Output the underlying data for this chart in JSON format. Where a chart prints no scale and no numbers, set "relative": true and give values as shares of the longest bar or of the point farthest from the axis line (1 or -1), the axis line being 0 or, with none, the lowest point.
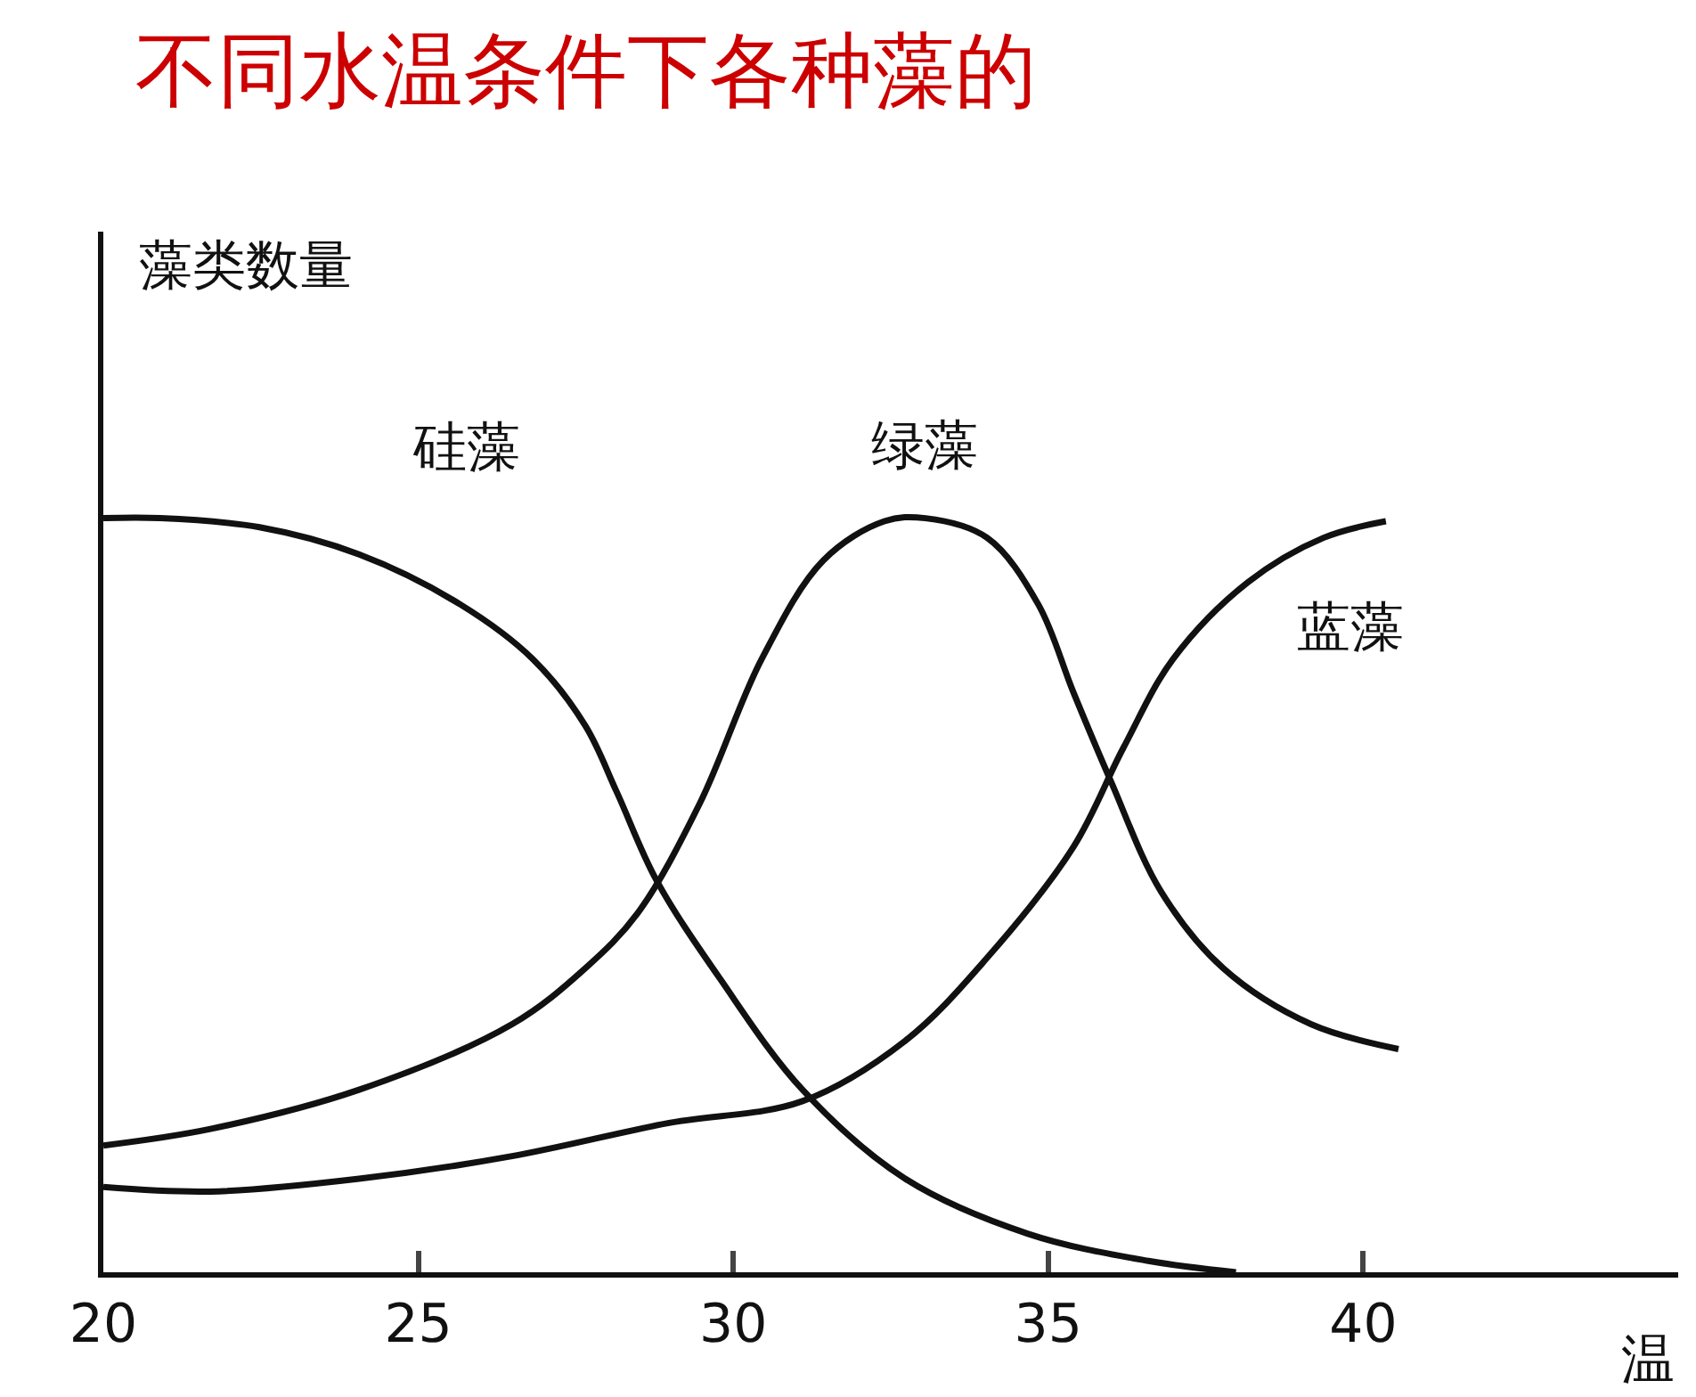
{
  "chart_data": {
    "type": "line",
    "title": "不同水温条件下各种藻的",
    "xlabel": "温",
    "ylabel": "藻类数量",
    "relative": true,
    "xlim": [
      20,
      45
    ],
    "xticks": [
      20,
      25,
      30,
      35,
      40
    ],
    "legend": false,
    "marker": "none",
    "line_style": "solid",
    "series": [
      {
        "name": "硅藻",
        "color": "#111111",
        "x": [
          20,
          20.9,
          22.48,
          24.06,
          25.66,
          26.82,
          27.65,
          28.15,
          28.78,
          29.8,
          31.1,
          32.73,
          34.68,
          36.59,
          37.98
        ],
        "values": [
          1.0,
          1.0,
          0.988,
          0.952,
          0.886,
          0.813,
          0.725,
          0.637,
          0.52,
          0.388,
          0.242,
          0.124,
          0.051,
          0.015,
          0
        ]
      },
      {
        "name": "绿藻",
        "color": "#111111",
        "x": [
          20,
          21.7,
          24.06,
          26.49,
          27.65,
          28.48,
          29.47,
          30.45,
          31.43,
          32.4,
          33.05,
          34.03,
          34.84,
          35.4,
          35.99,
          36.79,
          37.78,
          39.17,
          40.56
        ],
        "values": [
          0.168,
          0.19,
          0.242,
          0.329,
          0.403,
          0.476,
          0.622,
          0.813,
          0.944,
          0.996,
          1.0,
          0.974,
          0.886,
          0.769,
          0.652,
          0.505,
          0.403,
          0.329,
          0.296
        ]
      },
      {
        "name": "蓝藻",
        "color": "#111111",
        "x": [
          20,
          21.7,
          24.06,
          26.49,
          28.98,
          31.1,
          32.73,
          34.03,
          35.4,
          36.19,
          36.98,
          38.17,
          39.37,
          40.36
        ],
        "values": [
          0.113,
          0.107,
          0.124,
          0.154,
          0.198,
          0.227,
          0.307,
          0.417,
          0.564,
          0.695,
          0.813,
          0.915,
          0.974,
          0.996
        ]
      }
    ]
  }
}
